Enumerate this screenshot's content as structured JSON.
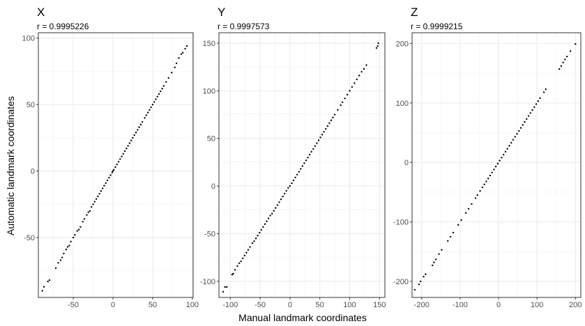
{
  "figure": {
    "ylabel": "Automatic landmark coordinates",
    "xlabel": "Manual landmark coordinates"
  },
  "chart_data": [
    {
      "type": "scatter",
      "title": "X",
      "subtitle": "r = 0.9995226",
      "xlim": [
        -94,
        101
      ],
      "ylim": [
        -95,
        104
      ],
      "xticks": [
        -50,
        0,
        50,
        100
      ],
      "yticks": [
        -50,
        0,
        50,
        100
      ],
      "xtick_labels": [
        "-50",
        "0",
        "50",
        "100"
      ],
      "ytick_labels": [
        "-50",
        "0",
        "50",
        "100"
      ],
      "grid": true,
      "points": {
        "x": [
          -89,
          -87,
          -82,
          -80,
          -72,
          -69,
          -66,
          -64,
          -62,
          -59,
          -57,
          -55,
          -53,
          -50,
          -48,
          -45,
          -43,
          -41,
          -38,
          -36,
          -33,
          -31,
          -29,
          -27,
          -25,
          -23,
          -21,
          -19,
          -17,
          -15,
          -13,
          -11,
          -9,
          -7,
          -5,
          -3,
          -1,
          0,
          1,
          3,
          5,
          7,
          9,
          11,
          13,
          15,
          17,
          19,
          21,
          23,
          25,
          27,
          29,
          31,
          33,
          35,
          37,
          40,
          42,
          44,
          46,
          48,
          50,
          52,
          54,
          56,
          58,
          60,
          62,
          64,
          67,
          70,
          74,
          78,
          80,
          83,
          86,
          88,
          91,
          93
        ],
        "y": [
          -90,
          -87,
          -83,
          -82,
          -73,
          -69,
          -67,
          -65,
          -62,
          -59,
          -57,
          -56,
          -53,
          -50,
          -48,
          -45,
          -44,
          -42,
          -38,
          -36,
          -33,
          -31,
          -30,
          -27,
          -25,
          -23,
          -21,
          -19,
          -17,
          -15,
          -13,
          -11,
          -9,
          -7,
          -5,
          -3,
          -1,
          0,
          1,
          3,
          5,
          7,
          9,
          11,
          13,
          15,
          17,
          19,
          21,
          23,
          25,
          27,
          29,
          31,
          33,
          35,
          37,
          40,
          42,
          44,
          46,
          48,
          50,
          52,
          54,
          56,
          58,
          60,
          62,
          64,
          67,
          70,
          74,
          78,
          81,
          85,
          88,
          89,
          92,
          94
        ]
      }
    },
    {
      "type": "scatter",
      "title": "Y",
      "subtitle": "r = 0.9997573",
      "xlim": [
        -119,
        159
      ],
      "ylim": [
        -117,
        161
      ],
      "xticks": [
        -100,
        -50,
        0,
        50,
        100,
        150
      ],
      "yticks": [
        -100,
        -50,
        0,
        50,
        100,
        150
      ],
      "xtick_labels": [
        "-100",
        "-50",
        "0",
        "50",
        "100",
        "150"
      ],
      "ytick_labels": [
        "-100",
        "-50",
        "0",
        "50",
        "100",
        "150"
      ],
      "grid": true,
      "points": {
        "x": [
          -112,
          -109,
          -106,
          -97,
          -95,
          -92,
          -88,
          -85,
          -82,
          -79,
          -76,
          -73,
          -70,
          -67,
          -63,
          -60,
          -57,
          -54,
          -51,
          -48,
          -45,
          -42,
          -39,
          -36,
          -33,
          -30,
          -27,
          -24,
          -21,
          -18,
          -15,
          -12,
          -9,
          -6,
          -3,
          0,
          3,
          6,
          9,
          12,
          15,
          18,
          21,
          24,
          27,
          30,
          33,
          36,
          39,
          42,
          45,
          48,
          51,
          54,
          57,
          60,
          63,
          66,
          69,
          72,
          75,
          80,
          85,
          88,
          92,
          96,
          100,
          104,
          108,
          112,
          116,
          120,
          124,
          128,
          145,
          147,
          148
        ],
        "y": [
          -111,
          -106,
          -106,
          -93,
          -92,
          -88,
          -84,
          -81,
          -79,
          -76,
          -73,
          -70,
          -67,
          -64,
          -60,
          -58,
          -55,
          -52,
          -49,
          -46,
          -43,
          -40,
          -37,
          -34,
          -31,
          -29,
          -26,
          -23,
          -20,
          -17,
          -14,
          -11,
          -8,
          -5,
          -2,
          0,
          3,
          6,
          9,
          12,
          15,
          18,
          21,
          24,
          27,
          30,
          33,
          36,
          39,
          42,
          45,
          48,
          51,
          54,
          57,
          60,
          63,
          66,
          69,
          72,
          75,
          80,
          85,
          88,
          92,
          96,
          100,
          104,
          108,
          112,
          116,
          120,
          123,
          127,
          145,
          147,
          150
        ]
      }
    },
    {
      "type": "scatter",
      "title": "Z",
      "subtitle": "r = 0.9999215",
      "xlim": [
        -225,
        214
      ],
      "ylim": [
        -227,
        218
      ],
      "xticks": [
        -200,
        -100,
        0,
        100,
        200
      ],
      "yticks": [
        -200,
        -100,
        0,
        100,
        200
      ],
      "xtick_labels": [
        "-200",
        "-100",
        "0",
        "100",
        "200"
      ],
      "ytick_labels": [
        "-200",
        "-100",
        "0",
        "100",
        "200"
      ],
      "grid": true,
      "points": {
        "x": [
          -218,
          -207,
          -203,
          -195,
          -190,
          -172,
          -168,
          -163,
          -155,
          -148,
          -132,
          -125,
          -118,
          -105,
          -97,
          -85,
          -78,
          -70,
          -60,
          -55,
          -48,
          -42,
          -37,
          -32,
          -27,
          -22,
          -17,
          -12,
          -7,
          -2,
          3,
          8,
          13,
          18,
          23,
          28,
          33,
          38,
          43,
          48,
          53,
          58,
          63,
          68,
          73,
          78,
          83,
          88,
          93,
          98,
          103,
          108,
          118,
          123,
          158,
          163,
          168,
          173,
          178,
          187,
          200
        ],
        "y": [
          -214,
          -205,
          -200,
          -192,
          -188,
          -173,
          -168,
          -163,
          -154,
          -147,
          -132,
          -125,
          -118,
          -105,
          -97,
          -85,
          -78,
          -70,
          -60,
          -55,
          -48,
          -42,
          -37,
          -32,
          -27,
          -22,
          -17,
          -12,
          -7,
          -2,
          3,
          8,
          13,
          18,
          23,
          28,
          33,
          38,
          43,
          48,
          53,
          58,
          63,
          68,
          73,
          78,
          83,
          88,
          93,
          98,
          103,
          108,
          118,
          123,
          157,
          162,
          168,
          173,
          178,
          187,
          199
        ]
      }
    }
  ]
}
